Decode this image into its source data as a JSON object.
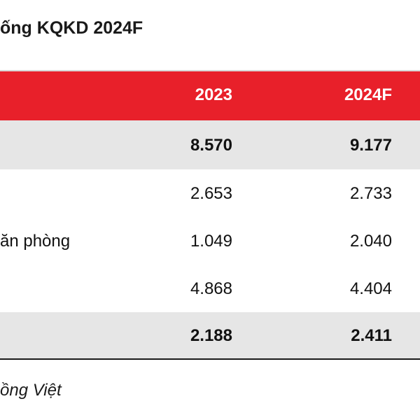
{
  "title": "ống KQKD 2024F",
  "header": {
    "col1": "2023",
    "col2": "2024F"
  },
  "rows": [
    {
      "label": "",
      "v2023": "8.570",
      "v2024": "9.177"
    },
    {
      "label": "",
      "v2023": "2.653",
      "v2024": "2.733"
    },
    {
      "label": "ăn phòng",
      "v2023": "1.049",
      "v2024": "2.040"
    },
    {
      "label": "",
      "v2023": "4.868",
      "v2024": "4.404"
    },
    {
      "label": "",
      "v2023": "2.188",
      "v2024": "2.411"
    }
  ],
  "source": "ồng Việt",
  "colors": {
    "header_bg": "#e8202a",
    "summary_bg": "#e6e6e6"
  }
}
